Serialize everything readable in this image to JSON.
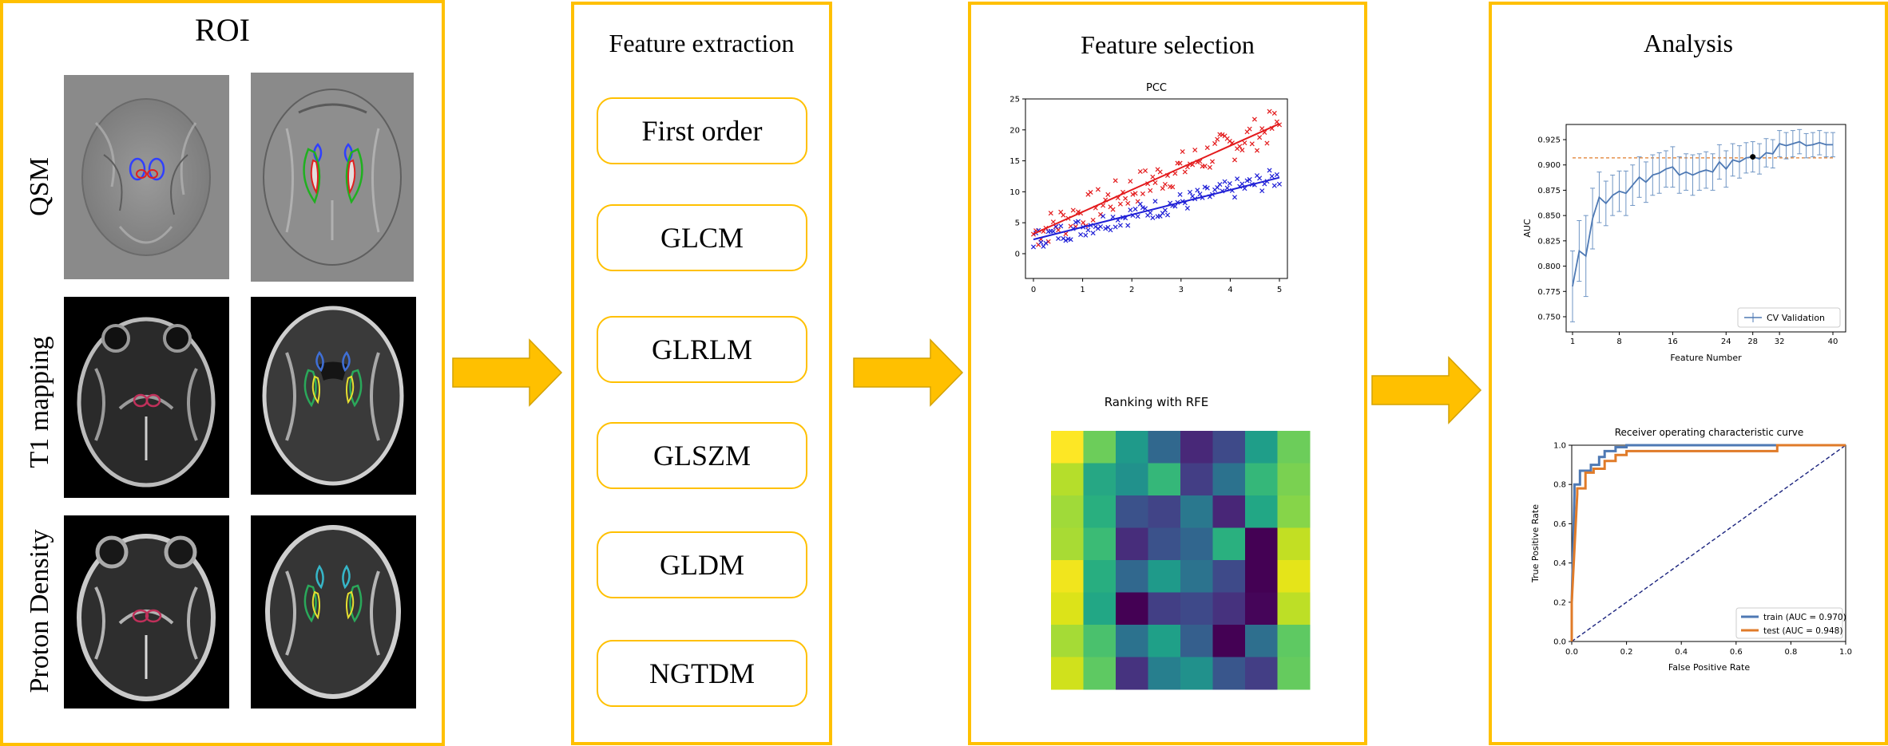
{
  "colors": {
    "accent": "#FFC000",
    "red": "#e31a1c",
    "blue": "#1f1fd6",
    "line_blue": "#4e79b4",
    "orange": "#e07b29"
  },
  "roi": {
    "title": "ROI",
    "rows": [
      {
        "label": "QSM"
      },
      {
        "label": "T1 mapping"
      },
      {
        "label": "Proton Density"
      }
    ]
  },
  "extraction": {
    "title": "Feature extraction",
    "items": [
      "First order",
      "GLCM",
      "GLRLM",
      "GLSZM",
      "GLDM",
      "NGTDM"
    ]
  },
  "selection": {
    "title": "Feature selection",
    "pcc_title": "PCC",
    "rfe_title": "Ranking with RFE"
  },
  "analysis": {
    "title": "Analysis"
  },
  "chart_data": [
    {
      "type": "scatter",
      "title": "PCC",
      "xlim": [
        0,
        5
      ],
      "ylim": [
        -4,
        25
      ],
      "xticks": [
        0,
        1,
        2,
        3,
        4,
        5
      ],
      "yticks": [
        0,
        5,
        10,
        15,
        20,
        25
      ],
      "series": [
        {
          "color": "#e31a1c",
          "trend": [
            [
              0,
              3.2
            ],
            [
              5,
              21
            ]
          ]
        },
        {
          "color": "#1f1fd6",
          "trend": [
            [
              0,
              2.3
            ],
            [
              5,
              12.3
            ]
          ]
        }
      ]
    },
    {
      "type": "heatmap",
      "title": "Ranking with RFE",
      "grid": [
        [
          "#fde725",
          "#6ccd5a",
          "#1f9a8a",
          "#31688e",
          "#482878",
          "#3e4a89",
          "#1f9e89",
          "#6ccd5a"
        ],
        [
          "#b5de2b",
          "#26a784",
          "#21918c",
          "#35b779",
          "#433e85",
          "#2c728e",
          "#35b779",
          "#7ad151"
        ],
        [
          "#a0da39",
          "#29af7f",
          "#3b528b",
          "#414487",
          "#2a788e",
          "#482677",
          "#22a785",
          "#86d549"
        ],
        [
          "#a8db34",
          "#3bbb75",
          "#472d7b",
          "#3b528b",
          "#31668e",
          "#2ab07f",
          "#440154",
          "#c2df23"
        ],
        [
          "#f1e51d",
          "#28ae80",
          "#31688e",
          "#1f9a8a",
          "#2c738e",
          "#3e4a89",
          "#440154",
          "#e5e419"
        ],
        [
          "#dce319",
          "#22a785",
          "#440154",
          "#423f85",
          "#3e4989",
          "#46327e",
          "#450559",
          "#bddf26"
        ],
        [
          "#a5db36",
          "#4ac16d",
          "#2c728e",
          "#1fa088",
          "#355f8d",
          "#440154",
          "#2e6f8e",
          "#5ec962"
        ],
        [
          "#d0e11c",
          "#5ec962",
          "#46337f",
          "#277f8e",
          "#21918c",
          "#39568c",
          "#433e85",
          "#65cb5e"
        ]
      ]
    },
    {
      "type": "line",
      "xlabel": "Feature Number",
      "ylabel": "AUC",
      "xlim": [
        0,
        41
      ],
      "ylim": [
        0.735,
        0.94
      ],
      "xticks": [
        1,
        8,
        16,
        24,
        28,
        32,
        40
      ],
      "yticks": [
        0.75,
        0.775,
        0.8,
        0.825,
        0.85,
        0.875,
        0.9,
        0.925
      ],
      "baseline": 0.907,
      "selected_point": [
        28,
        0.908
      ],
      "legend": "CV Validation",
      "x": [
        1,
        2,
        3,
        4,
        5,
        6,
        7,
        8,
        9,
        10,
        11,
        12,
        13,
        14,
        15,
        16,
        17,
        18,
        19,
        20,
        21,
        22,
        23,
        24,
        25,
        26,
        27,
        28,
        29,
        30,
        31,
        32,
        33,
        34,
        35,
        36,
        37,
        38,
        39,
        40
      ],
      "series": [
        {
          "name": "CV Validation",
          "values": [
            0.78,
            0.815,
            0.81,
            0.847,
            0.868,
            0.862,
            0.87,
            0.874,
            0.872,
            0.88,
            0.888,
            0.883,
            0.89,
            0.892,
            0.896,
            0.898,
            0.89,
            0.893,
            0.89,
            0.893,
            0.895,
            0.893,
            0.903,
            0.896,
            0.905,
            0.903,
            0.907,
            0.908,
            0.906,
            0.912,
            0.911,
            0.921,
            0.919,
            0.921,
            0.923,
            0.919,
            0.92,
            0.922,
            0.92,
            0.92
          ],
          "err": [
            0.035,
            0.03,
            0.04,
            0.03,
            0.025,
            0.022,
            0.02,
            0.02,
            0.022,
            0.02,
            0.02,
            0.02,
            0.02,
            0.02,
            0.018,
            0.02,
            0.018,
            0.018,
            0.02,
            0.018,
            0.018,
            0.018,
            0.017,
            0.018,
            0.016,
            0.016,
            0.015,
            0.015,
            0.015,
            0.014,
            0.014,
            0.013,
            0.013,
            0.013,
            0.012,
            0.012,
            0.012,
            0.012,
            0.012,
            0.012
          ]
        }
      ]
    },
    {
      "type": "line",
      "title": "Receiver operating characteristic curve",
      "xlabel": "False Positive Rate",
      "ylabel": "True Positive Rate",
      "xlim": [
        0,
        1
      ],
      "ylim": [
        0,
        1
      ],
      "xticks": [
        0.0,
        0.2,
        0.4,
        0.6,
        0.8,
        1.0
      ],
      "yticks": [
        0.0,
        0.2,
        0.4,
        0.6,
        0.8,
        1.0
      ],
      "series": [
        {
          "name": "train (AUC = 0.970)",
          "color": "#4e79b4",
          "points": [
            [
              0,
              0
            ],
            [
              0,
              0.2
            ],
            [
              0.01,
              0.75
            ],
            [
              0.01,
              0.8
            ],
            [
              0.03,
              0.8
            ],
            [
              0.03,
              0.87
            ],
            [
              0.07,
              0.87
            ],
            [
              0.07,
              0.9
            ],
            [
              0.1,
              0.9
            ],
            [
              0.1,
              0.94
            ],
            [
              0.12,
              0.94
            ],
            [
              0.12,
              0.97
            ],
            [
              0.16,
              0.97
            ],
            [
              0.16,
              0.99
            ],
            [
              0.2,
              0.99
            ],
            [
              0.2,
              1.0
            ],
            [
              1,
              1
            ]
          ]
        },
        {
          "name": "test (AUC = 0.948)",
          "color": "#e07b29",
          "points": [
            [
              0,
              0
            ],
            [
              0,
              0.2
            ],
            [
              0.02,
              0.75
            ],
            [
              0.02,
              0.78
            ],
            [
              0.05,
              0.78
            ],
            [
              0.05,
              0.86
            ],
            [
              0.08,
              0.86
            ],
            [
              0.08,
              0.88
            ],
            [
              0.12,
              0.88
            ],
            [
              0.12,
              0.92
            ],
            [
              0.16,
              0.92
            ],
            [
              0.16,
              0.95
            ],
            [
              0.2,
              0.95
            ],
            [
              0.2,
              0.97
            ],
            [
              0.75,
              0.97
            ],
            [
              0.75,
              1.0
            ],
            [
              1,
              1
            ]
          ]
        }
      ]
    }
  ]
}
